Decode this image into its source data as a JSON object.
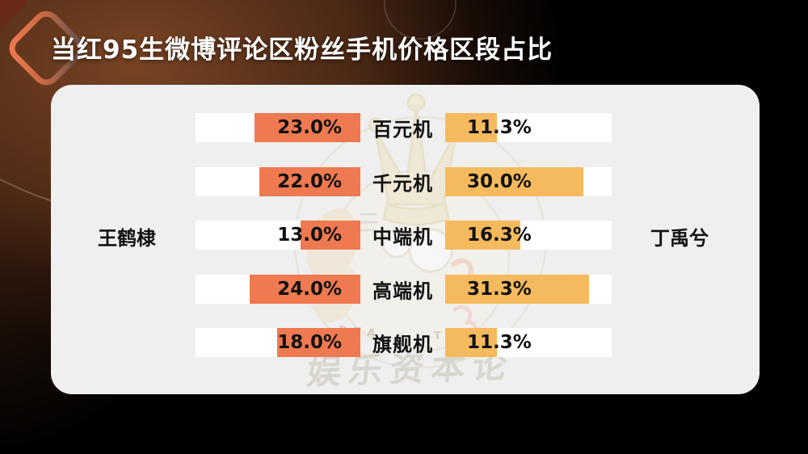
{
  "title": "当红95生微博评论区粉丝手机价格区段占比",
  "watermark": {
    "brand_text": "娱乐资本论",
    "ring_text_fragment_left": "RTA",
    "ring_text_fragment_right": "T C",
    "crown_icon": "crown-icon"
  },
  "colors": {
    "background": "#000000",
    "background_glow": "#7B4526",
    "card": "#EFEFEF",
    "track": "#FFFFFF",
    "left_bar": "#EF7950",
    "right_bar": "#F6BA5E",
    "title_text": "#FFFFFF",
    "value_text": "#111111",
    "ornament_accent": "#F07B4F",
    "corner_diamond": "#6326155"
  },
  "chart_data": {
    "type": "bar",
    "variant": "butterfly-tornado",
    "title": "当红95生微博评论区粉丝手机价格区段占比",
    "categories": [
      "百元机",
      "千元机",
      "中端机",
      "高端机",
      "旗舰机"
    ],
    "series": [
      {
        "name": "王鹤棣",
        "side": "left",
        "color": "#EF7950",
        "values": [
          23.0,
          22.0,
          13.0,
          24.0,
          18.0
        ],
        "labels": [
          "23.0%",
          "22.0%",
          "13.0%",
          "24.0%",
          "18.0%"
        ]
      },
      {
        "name": "丁禹兮",
        "side": "right",
        "color": "#F6BA5E",
        "values": [
          11.3,
          30.0,
          16.3,
          31.3,
          11.3
        ],
        "labels": [
          "11.3%",
          "30.0%",
          "16.3%",
          "31.3%",
          "11.3%"
        ]
      }
    ],
    "unit": "%",
    "axis_max_percent": 36,
    "grid": false,
    "legend_position": "sides"
  }
}
